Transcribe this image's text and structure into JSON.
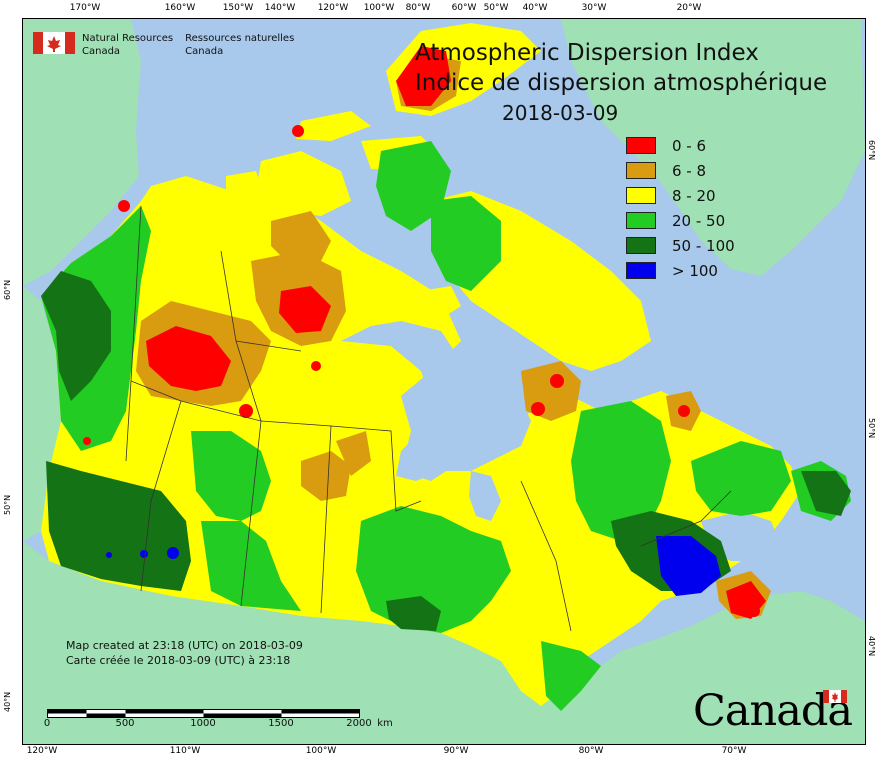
{
  "map": {
    "title_en": "Atmospheric Dispersion Index",
    "title_fr": "Indice de dispersion atmosphérique",
    "date": "2018-03-09",
    "legend": [
      {
        "label": "0 - 6",
        "color": "#ff0000"
      },
      {
        "label": "6 - 8",
        "color": "#d99b0f"
      },
      {
        "label": "8 - 20",
        "color": "#ffff00"
      },
      {
        "label": "20 - 50",
        "color": "#22cc22"
      },
      {
        "label": "50 - 100",
        "color": "#147314"
      },
      {
        "label": "> 100",
        "color": "#0000ee"
      }
    ],
    "colors": {
      "ocean": "#a8c8ec",
      "land_outside": "#9fe0b4",
      "boundary": "#333333"
    }
  },
  "agency": {
    "name_en_1": "Natural Resources",
    "name_en_2": "Canada",
    "name_fr_1": "Ressources naturelles",
    "name_fr_2": "Canada"
  },
  "credit": {
    "line_en": "Map created at 23:18 (UTC) on 2018-03-09",
    "line_fr": "Carte créée le 2018-03-09 (UTC) à 23:18"
  },
  "scale": {
    "labels": [
      "0",
      "500",
      "1000",
      "1500",
      "2000"
    ],
    "unit": "km"
  },
  "wordmark": "Canada",
  "graticule": {
    "top": [
      "170°W",
      "160°W",
      "150°W",
      "140°W",
      "120°W",
      "100°W",
      "80°W",
      "60°W",
      "50°W",
      "40°W",
      "30°W",
      "20°W"
    ],
    "bottom": [
      "120°W",
      "110°W",
      "100°W",
      "90°W",
      "80°W",
      "70°W"
    ],
    "left": [
      "60°N",
      "50°N",
      "40°N"
    ],
    "right": [
      "60°N",
      "50°N",
      "40°N"
    ]
  }
}
